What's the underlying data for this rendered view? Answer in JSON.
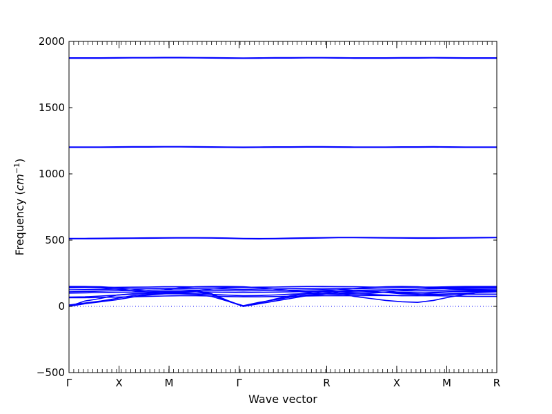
{
  "chart_data": {
    "type": "line",
    "title": "",
    "xlabel": "Wave vector",
    "ylabel": "Frequency",
    "ylabel_unit": "cm",
    "ylabel_unit_exp": "−1",
    "ylim": [
      -500,
      2000
    ],
    "yticks": [
      {
        "value": -500,
        "label": "−500"
      },
      {
        "value": 0,
        "label": "0"
      },
      {
        "value": 500,
        "label": "500"
      },
      {
        "value": 1000,
        "label": "1000"
      },
      {
        "value": 1500,
        "label": "1500"
      },
      {
        "value": 2000,
        "label": "2000"
      }
    ],
    "xticks": [
      "Γ",
      "X",
      "M",
      "Γ",
      "R",
      "X",
      "M",
      "R"
    ],
    "xtick_positions": [
      0,
      1,
      2,
      3.4,
      5.15,
      6.55,
      7.55,
      8.55
    ],
    "band_color": "#0000ff",
    "zero_line_color": "#0000ff",
    "series": [
      {
        "values": [
          0,
          40,
          60,
          85,
          95,
          100,
          105,
          110,
          120,
          95,
          45,
          0,
          25,
          55,
          80,
          95,
          110,
          100,
          75,
          60,
          45,
          35,
          30,
          45,
          70,
          90,
          110,
          120
        ]
      },
      {
        "values": [
          0,
          20,
          35,
          50,
          70,
          85,
          95,
          100,
          110,
          90,
          40,
          0,
          20,
          40,
          60,
          80,
          90,
          110,
          120,
          115,
          105,
          95,
          90,
          100,
          110,
          115,
          118,
          120
        ]
      },
      {
        "values": [
          10,
          25,
          40,
          60,
          80,
          90,
          95,
          95,
          90,
          75,
          40,
          5,
          30,
          50,
          70,
          85,
          95,
          100,
          105,
          110,
          105,
          100,
          95,
          90,
          95,
          100,
          105,
          110
        ]
      },
      {
        "values": [
          65,
          65,
          68,
          70,
          72,
          75,
          78,
          80,
          80,
          78,
          74,
          72,
          72,
          74,
          76,
          78,
          80,
          80,
          80,
          82,
          82,
          82,
          80,
          80,
          78,
          76,
          75,
          75
        ]
      },
      {
        "values": [
          70,
          72,
          78,
          85,
          92,
          98,
          100,
          98,
          95,
          90,
          85,
          80,
          82,
          86,
          92,
          96,
          98,
          100,
          95,
          90,
          85,
          80,
          82,
          86,
          90,
          92,
          92,
          92
        ]
      },
      {
        "values": [
          100,
          102,
          104,
          106,
          108,
          110,
          112,
          112,
          110,
          108,
          106,
          104,
          106,
          108,
          110,
          112,
          114,
          112,
          110,
          108,
          106,
          105,
          106,
          108,
          110,
          112,
          112,
          112
        ]
      },
      {
        "values": [
          110,
          112,
          115,
          118,
          120,
          122,
          124,
          124,
          122,
          120,
          118,
          116,
          118,
          120,
          122,
          124,
          126,
          124,
          122,
          120,
          118,
          116,
          118,
          120,
          122,
          124,
          124,
          124
        ]
      },
      {
        "values": [
          125,
          126,
          128,
          130,
          132,
          134,
          135,
          135,
          134,
          132,
          130,
          128,
          130,
          132,
          134,
          136,
          137,
          136,
          134,
          132,
          130,
          128,
          130,
          132,
          134,
          136,
          136,
          136
        ]
      },
      {
        "values": [
          140,
          142,
          143,
          144,
          145,
          146,
          148,
          148,
          147,
          146,
          145,
          144,
          145,
          146,
          148,
          150,
          150,
          149,
          148,
          146,
          145,
          144,
          145,
          146,
          148,
          150,
          150,
          150
        ]
      },
      {
        "values": [
          150,
          150,
          148,
          140,
          130,
          120,
          125,
          140,
          148,
          150,
          150,
          148,
          140,
          130,
          120,
          110,
          115,
          125,
          135,
          142,
          148,
          150,
          148,
          140,
          132,
          128,
          126,
          125
        ]
      },
      {
        "values": [
          145,
          144,
          140,
          130,
          118,
          108,
          100,
          105,
          118,
          130,
          140,
          145,
          140,
          130,
          118,
          105,
          95,
          90,
          92,
          98,
          108,
          120,
          130,
          138,
          142,
          144,
          145,
          145
        ]
      },
      {
        "values": [
          510,
          510,
          511,
          512,
          513,
          514,
          515,
          516,
          516,
          515,
          513,
          510,
          509,
          510,
          512,
          514,
          516,
          518,
          518,
          517,
          516,
          515,
          514,
          514,
          515,
          516,
          517,
          518
        ]
      },
      {
        "values": [
          513,
          513,
          514,
          515,
          516,
          517,
          518,
          519,
          519,
          518,
          516,
          513,
          512,
          513,
          515,
          517,
          519,
          521,
          521,
          520,
          519,
          518,
          517,
          517,
          518,
          519,
          520,
          521
        ]
      },
      {
        "values": [
          1200,
          1200,
          1200,
          1201,
          1202,
          1202,
          1203,
          1203,
          1202,
          1201,
          1200,
          1199,
          1200,
          1201,
          1201,
          1202,
          1202,
          1201,
          1200,
          1200,
          1200,
          1201,
          1201,
          1202,
          1201,
          1200,
          1200,
          1200
        ]
      },
      {
        "values": [
          1203,
          1203,
          1203,
          1204,
          1205,
          1205,
          1206,
          1206,
          1205,
          1204,
          1203,
          1202,
          1203,
          1204,
          1204,
          1205,
          1205,
          1204,
          1203,
          1203,
          1203,
          1204,
          1204,
          1205,
          1204,
          1203,
          1203,
          1203
        ]
      },
      {
        "values": [
          1873,
          1873,
          1873,
          1874,
          1875,
          1875,
          1876,
          1876,
          1875,
          1874,
          1873,
          1872,
          1873,
          1874,
          1874,
          1875,
          1875,
          1874,
          1873,
          1873,
          1873,
          1874,
          1874,
          1875,
          1874,
          1873,
          1873,
          1873
        ]
      },
      {
        "values": [
          1876,
          1876,
          1876,
          1877,
          1878,
          1878,
          1879,
          1879,
          1878,
          1877,
          1876,
          1875,
          1876,
          1877,
          1877,
          1878,
          1878,
          1877,
          1876,
          1876,
          1876,
          1877,
          1877,
          1878,
          1877,
          1876,
          1876,
          1876
        ]
      }
    ]
  }
}
